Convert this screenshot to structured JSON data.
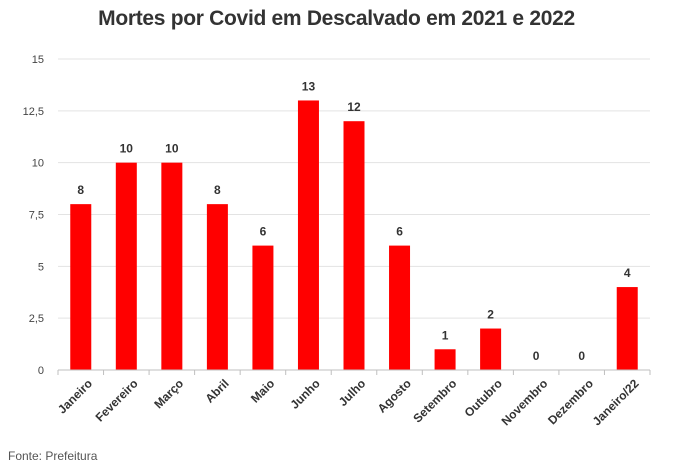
{
  "chart_data": {
    "type": "bar",
    "title": "Mortes por Covid em Descalvado em 2021 e 2022",
    "categories": [
      "Janeiro",
      "Fevereiro",
      "Março",
      "Abril",
      "Maio",
      "Junho",
      "Julho",
      "Agosto",
      "Setembro",
      "Outubro",
      "Novembro",
      "Dezembro",
      "Janeiro/22"
    ],
    "values": [
      8,
      10,
      10,
      8,
      6,
      13,
      12,
      6,
      1,
      2,
      0,
      0,
      4
    ],
    "data_labels": [
      "8",
      "10",
      "10",
      "8",
      "6",
      "13",
      "12",
      "6",
      "1",
      "2",
      "0",
      "0",
      "4"
    ],
    "ylim": [
      0,
      15
    ],
    "yticks": [
      0,
      2.5,
      5,
      7.5,
      10,
      12.5,
      15
    ],
    "ytick_labels": [
      "0",
      "2,5",
      "5",
      "7,5",
      "10",
      "12,5",
      "15"
    ],
    "xlabel": "",
    "ylabel": "",
    "grid": true,
    "bar_color": "#ff0000",
    "source": "Fonte: Prefeitura"
  }
}
